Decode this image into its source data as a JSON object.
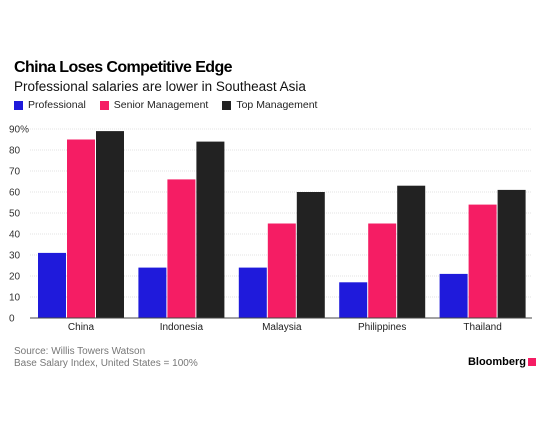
{
  "chart_data": {
    "type": "bar",
    "title": "China Loses Competitive Edge",
    "subtitle": "Professional salaries are lower in Southeast Asia",
    "categories": [
      "China",
      "Indonesia",
      "Malaysia",
      "Philippines",
      "Thailand"
    ],
    "series": [
      {
        "name": "Professional",
        "color": "#1f1adb",
        "values": [
          31,
          24,
          24,
          17,
          21
        ]
      },
      {
        "name": "Senior Management",
        "color": "#f51d64",
        "values": [
          85,
          66,
          45,
          45,
          54
        ]
      },
      {
        "name": "Top Management",
        "color": "#222222",
        "values": [
          89,
          84,
          60,
          63,
          61
        ]
      }
    ],
    "y_ticks": [
      "0",
      "10",
      "20",
      "30",
      "40",
      "50",
      "60",
      "70",
      "80",
      "90%"
    ],
    "ylim": [
      0,
      90
    ],
    "grid": true,
    "legend": "top-left",
    "xlabel": "",
    "ylabel": ""
  },
  "footer": {
    "source": "Source: Willis Towers Watson",
    "note": "Base Salary Index, United States = 100%",
    "brand": "Bloomberg",
    "brand_color": "#f51d64"
  }
}
